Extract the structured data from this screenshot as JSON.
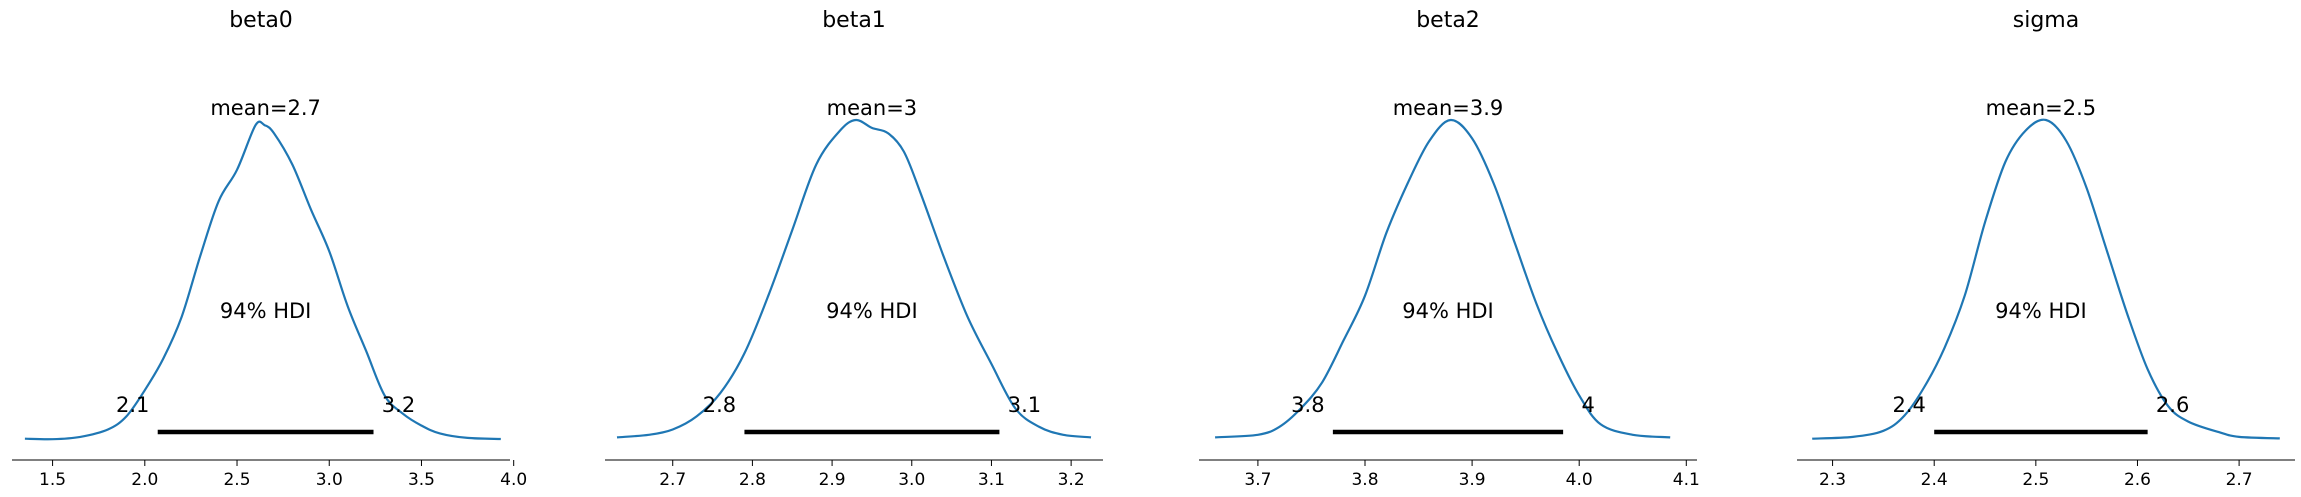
{
  "chart_data": [
    {
      "type": "line",
      "title": "beta0",
      "mean_label": "mean=2.7",
      "hdi_label": "94% HDI",
      "hdi": [
        2.07,
        3.24
      ],
      "hdi_labels": [
        "2.1",
        "3.2"
      ],
      "xlim": [
        1.28,
        3.98
      ],
      "ticks": [
        1.5,
        2.0,
        2.5,
        3.0,
        3.5,
        4.0
      ],
      "tick_labels": [
        "1.5",
        "2.0",
        "2.5",
        "3.0",
        "3.5",
        "4.0"
      ],
      "x": [
        1.35,
        1.5,
        1.65,
        1.8,
        1.9,
        2.0,
        2.1,
        2.2,
        2.3,
        2.4,
        2.5,
        2.6,
        2.65,
        2.7,
        2.8,
        2.9,
        3.0,
        3.1,
        3.2,
        3.3,
        3.4,
        3.5,
        3.6,
        3.75,
        3.93
      ],
      "y": [
        0.005,
        0.003,
        0.012,
        0.04,
        0.09,
        0.19,
        0.31,
        0.47,
        0.7,
        0.91,
        1.03,
        1.2,
        1.2,
        1.17,
        1.05,
        0.88,
        0.72,
        0.51,
        0.34,
        0.17,
        0.1,
        0.055,
        0.025,
        0.008,
        0.004
      ]
    },
    {
      "type": "line",
      "title": "beta1",
      "mean_label": "mean=3",
      "hdi_label": "94% HDI",
      "hdi": [
        2.79,
        3.11
      ],
      "hdi_labels": [
        "2.8",
        "3.1"
      ],
      "xlim": [
        2.615,
        3.24
      ],
      "ticks": [
        2.7,
        2.8,
        2.9,
        3.0,
        3.1,
        3.2
      ],
      "tick_labels": [
        "2.7",
        "2.8",
        "2.9",
        "3.0",
        "3.1",
        "3.2"
      ],
      "x": [
        2.63,
        2.67,
        2.7,
        2.73,
        2.76,
        2.79,
        2.82,
        2.85,
        2.88,
        2.91,
        2.93,
        2.95,
        2.97,
        2.99,
        3.01,
        3.04,
        3.07,
        3.1,
        3.13,
        3.16,
        3.19,
        3.225
      ],
      "y": [
        0.01,
        0.02,
        0.04,
        0.09,
        0.18,
        0.33,
        0.55,
        0.8,
        1.05,
        1.18,
        1.22,
        1.19,
        1.17,
        1.1,
        0.95,
        0.7,
        0.47,
        0.29,
        0.12,
        0.05,
        0.02,
        0.01
      ]
    },
    {
      "type": "line",
      "title": "beta2",
      "mean_label": "mean=3.9",
      "hdi_label": "94% HDI",
      "hdi": [
        3.77,
        3.985
      ],
      "hdi_labels": [
        "3.8",
        "4"
      ],
      "xlim": [
        3.645,
        4.11
      ],
      "ticks": [
        3.7,
        3.8,
        3.9,
        4.0,
        4.1
      ],
      "tick_labels": [
        "3.7",
        "3.8",
        "3.9",
        "4.0",
        "4.1"
      ],
      "x": [
        3.66,
        3.7,
        3.72,
        3.74,
        3.76,
        3.78,
        3.8,
        3.82,
        3.84,
        3.86,
        3.88,
        3.9,
        3.92,
        3.94,
        3.96,
        3.98,
        4.0,
        4.02,
        4.05,
        4.085
      ],
      "y": [
        0.01,
        0.02,
        0.05,
        0.12,
        0.22,
        0.38,
        0.55,
        0.79,
        0.98,
        1.14,
        1.22,
        1.15,
        0.98,
        0.75,
        0.52,
        0.33,
        0.17,
        0.06,
        0.02,
        0.01
      ]
    },
    {
      "type": "line",
      "title": "sigma",
      "mean_label": "mean=2.5",
      "hdi_label": "94% HDI",
      "hdi": [
        2.4,
        2.61
      ],
      "hdi_labels": [
        "2.4",
        "2.6"
      ],
      "xlim": [
        2.265,
        2.755
      ],
      "ticks": [
        2.3,
        2.4,
        2.5,
        2.6,
        2.7
      ],
      "tick_labels": [
        "2.3",
        "2.4",
        "2.5",
        "2.6",
        "2.7"
      ],
      "x": [
        2.28,
        2.32,
        2.35,
        2.37,
        2.39,
        2.41,
        2.43,
        2.45,
        2.47,
        2.49,
        2.51,
        2.53,
        2.55,
        2.57,
        2.59,
        2.61,
        2.63,
        2.65,
        2.68,
        2.7,
        2.74
      ],
      "y": [
        0.005,
        0.012,
        0.035,
        0.09,
        0.2,
        0.35,
        0.55,
        0.83,
        1.06,
        1.18,
        1.22,
        1.14,
        0.96,
        0.72,
        0.48,
        0.27,
        0.13,
        0.07,
        0.03,
        0.012,
        0.006
      ]
    }
  ],
  "colors": {
    "line": "#1f77b4",
    "hdi_bar": "#000000",
    "axis": "#000000"
  }
}
